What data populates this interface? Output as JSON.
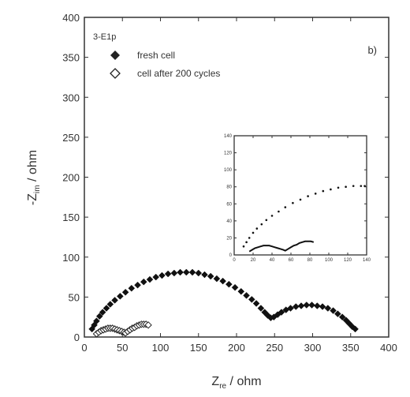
{
  "chart_data": [
    {
      "id": "main",
      "type": "scatter",
      "panel_label": "b)",
      "legend_title": "3-E1p",
      "legend_position": "top-left",
      "xlabel": {
        "main": "Z",
        "sub": "re",
        "rest": " / ohm"
      },
      "ylabel": {
        "sign": "-",
        "main": "Z",
        "sub": "im",
        "rest": " / ohm"
      },
      "xlim": [
        0,
        400
      ],
      "ylim": [
        0,
        400
      ],
      "xticks": [
        "0",
        "50",
        "100",
        "150",
        "200",
        "250",
        "300",
        "350",
        "400"
      ],
      "yticks": [
        "0",
        "50",
        "100",
        "150",
        "200",
        "250",
        "300",
        "350",
        "400"
      ],
      "series": [
        {
          "name": "fresh cell",
          "marker": "filled-diamond",
          "x": [
            10,
            13,
            16,
            20,
            24,
            29,
            34,
            40,
            47,
            54,
            62,
            70,
            78,
            86,
            94,
            102,
            110,
            118,
            126,
            134,
            142,
            150,
            158,
            166,
            174,
            182,
            190,
            198,
            206,
            213,
            220,
            226,
            232,
            237,
            241,
            245,
            249,
            254,
            259,
            265,
            271,
            278,
            285,
            292,
            299,
            306,
            313,
            320,
            327,
            333,
            339,
            344,
            348,
            352,
            356
          ],
          "y": [
            10,
            15,
            20,
            26,
            31,
            36,
            41,
            46,
            51,
            56,
            61,
            65,
            69,
            72,
            75,
            77,
            79,
            80,
            81,
            81,
            81,
            80,
            78,
            76,
            73,
            70,
            66,
            62,
            57,
            52,
            47,
            42,
            36,
            31,
            27,
            24,
            25,
            28,
            31,
            34,
            36,
            38,
            39,
            40,
            40,
            39,
            38,
            36,
            33,
            29,
            25,
            21,
            17,
            13,
            10
          ]
        },
        {
          "name": "cell after 200 cycles",
          "marker": "open-diamond",
          "x": [
            16,
            19,
            22,
            25,
            28,
            31,
            34,
            37,
            40,
            43,
            46,
            49,
            52,
            54,
            57,
            60,
            63,
            66,
            69,
            72,
            75,
            78,
            81,
            84
          ],
          "y": [
            4,
            6,
            8,
            9,
            10,
            11,
            11,
            11,
            10,
            9,
            8,
            7,
            6,
            5,
            7,
            9,
            11,
            12,
            14,
            15,
            16,
            16,
            16,
            15
          ]
        }
      ]
    },
    {
      "id": "inset",
      "type": "scatter",
      "xlim": [
        0,
        140
      ],
      "ylim": [
        0,
        140
      ],
      "xticks": [
        "0",
        "20",
        "40",
        "60",
        "80",
        "100",
        "120",
        "140"
      ],
      "yticks": [
        "0",
        "20",
        "40",
        "60",
        "80",
        "100",
        "120",
        "140"
      ],
      "series": [
        {
          "name": "fresh cell",
          "marker": "dot",
          "x": [
            10,
            13,
            16,
            20,
            24,
            29,
            34,
            40,
            47,
            54,
            62,
            70,
            78,
            86,
            94,
            102,
            110,
            118,
            126,
            134,
            138
          ],
          "y": [
            10,
            15,
            20,
            26,
            31,
            36,
            41,
            46,
            51,
            56,
            61,
            65,
            69,
            72,
            75,
            77,
            79,
            80,
            81,
            81,
            81
          ]
        },
        {
          "name": "cell after 200 cycles",
          "marker": "line",
          "x": [
            16,
            19,
            22,
            25,
            28,
            31,
            34,
            37,
            40,
            43,
            46,
            49,
            52,
            54,
            57,
            60,
            63,
            66,
            69,
            72,
            75,
            78,
            81,
            84
          ],
          "y": [
            4,
            6,
            8,
            9,
            10,
            11,
            11,
            11,
            10,
            9,
            8,
            7,
            6,
            5,
            7,
            9,
            11,
            12,
            14,
            15,
            16,
            16,
            16,
            15
          ]
        }
      ]
    }
  ]
}
